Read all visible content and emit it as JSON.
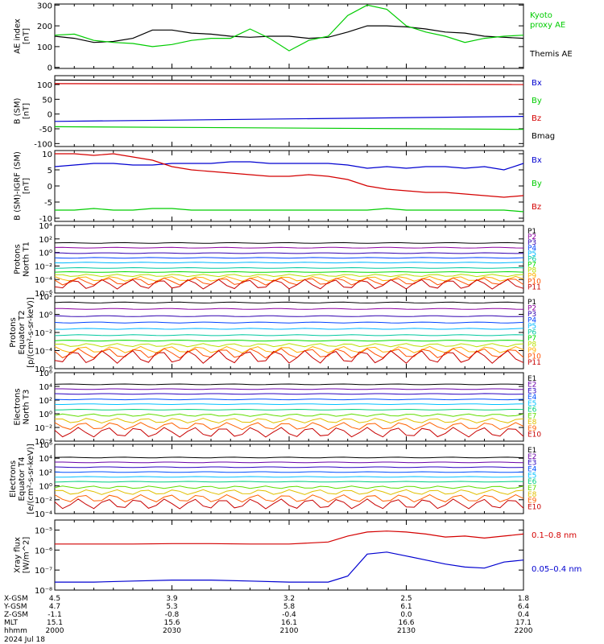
{
  "colors": {
    "black": "#000000",
    "red": "#d40000",
    "green": "#00cc00",
    "blue": "#0000d0"
  },
  "chart_data": [
    {
      "type": "line",
      "panel": 1,
      "ylabel": "AE index\n[nT]",
      "yticks": [
        "0",
        "100",
        "200",
        "300"
      ],
      "ylim": [
        -5,
        305
      ],
      "legend": [
        {
          "name": "Kyoto\nproxy AE",
          "color": "#00cc00"
        },
        {
          "name": "Themis AE",
          "color": "#000000"
        }
      ],
      "x": [
        0,
        5,
        10,
        15,
        20,
        25,
        30,
        35,
        40,
        45,
        50,
        55,
        60,
        65,
        70,
        75,
        80,
        85,
        90,
        95,
        100,
        105,
        110,
        115,
        120
      ],
      "series": [
        {
          "name": "Themis AE",
          "color": "#000000",
          "values": [
            150,
            140,
            120,
            125,
            140,
            180,
            180,
            165,
            160,
            150,
            145,
            150,
            150,
            140,
            145,
            170,
            200,
            200,
            195,
            185,
            170,
            165,
            150,
            145,
            140
          ]
        },
        {
          "name": "Kyoto proxy AE",
          "color": "#00cc00",
          "values": [
            155,
            160,
            130,
            120,
            115,
            100,
            110,
            130,
            140,
            140,
            185,
            140,
            80,
            130,
            150,
            250,
            300,
            280,
            200,
            170,
            150,
            120,
            140,
            150,
            155
          ]
        }
      ]
    },
    {
      "type": "line",
      "panel": 2,
      "ylabel": "B (SM)\n[nT]",
      "yticks": [
        "-100",
        "-50",
        "0",
        "50",
        "100"
      ],
      "ylim": [
        -110,
        130
      ],
      "legend": [
        {
          "name": "Bx",
          "color": "#0000d0"
        },
        {
          "name": "By",
          "color": "#00cc00"
        },
        {
          "name": "Bz",
          "color": "#d40000"
        },
        {
          "name": "Bmag",
          "color": "#000000"
        }
      ],
      "x": [
        0,
        120
      ],
      "series": [
        {
          "name": "Bmag",
          "color": "#000000",
          "values": [
            115,
            112
          ]
        },
        {
          "name": "Bz",
          "color": "#d40000",
          "values": [
            103,
            100
          ]
        },
        {
          "name": "Bx",
          "color": "#0000d0",
          "values": [
            -25,
            -8
          ]
        },
        {
          "name": "By",
          "color": "#00cc00",
          "values": [
            -43,
            -52
          ]
        }
      ]
    },
    {
      "type": "line",
      "panel": 3,
      "ylabel": "B (SM)-IGRF (SM)\n[nT]",
      "yticks": [
        "-10",
        "-5",
        "0",
        "5",
        "10"
      ],
      "ylim": [
        -11,
        11
      ],
      "legend": [
        {
          "name": "Bx",
          "color": "#0000d0"
        },
        {
          "name": "By",
          "color": "#00cc00"
        },
        {
          "name": "Bz",
          "color": "#d40000"
        }
      ],
      "x": [
        0,
        5,
        10,
        15,
        20,
        25,
        30,
        35,
        40,
        45,
        50,
        55,
        60,
        65,
        70,
        75,
        80,
        85,
        90,
        95,
        100,
        105,
        110,
        115,
        120
      ],
      "series": [
        {
          "name": "Bx",
          "color": "#0000d0",
          "values": [
            6,
            6.5,
            7,
            7,
            6.5,
            6.5,
            7,
            7,
            7,
            7.5,
            7.5,
            7,
            7,
            7,
            7,
            6.5,
            5.5,
            6,
            5.5,
            6,
            6,
            5.5,
            6,
            5,
            7
          ]
        },
        {
          "name": "By",
          "color": "#00cc00",
          "values": [
            -7.5,
            -7.5,
            -7,
            -7.5,
            -7.5,
            -7,
            -7,
            -7.5,
            -7.5,
            -7.5,
            -7.5,
            -7.5,
            -7.5,
            -7.5,
            -7.5,
            -7.5,
            -7.5,
            -7,
            -7.5,
            -7.5,
            -7.5,
            -7.5,
            -7.5,
            -7.5,
            -8
          ]
        },
        {
          "name": "Bz",
          "color": "#d40000",
          "values": [
            10,
            10,
            9.5,
            10,
            9,
            8,
            6,
            5,
            4.5,
            4,
            3.5,
            3,
            3,
            3.5,
            3,
            2,
            0,
            -1,
            -1.5,
            -2,
            -2,
            -2.5,
            -3,
            -3.5,
            -3
          ]
        }
      ]
    },
    {
      "type": "line",
      "panel": 4,
      "ylabel": "Protons\nNorth T1",
      "yticks": [
        "10⁻⁶",
        "10⁻⁴",
        "10⁻²",
        "10⁰",
        "10²",
        "10⁴"
      ],
      "ylim": [
        -6,
        4
      ],
      "channels": [
        "P1",
        "P2",
        "P3",
        "P4",
        "P5",
        "P6",
        "P7",
        "P8",
        "P9",
        "P10",
        "P11"
      ],
      "levels": [
        1.4,
        0.7,
        -0.1,
        -0.8,
        -1.5,
        -2.3,
        -2.9,
        -3.4,
        -3.9,
        -4.3,
        -4.7
      ]
    },
    {
      "type": "line",
      "panel": 5,
      "ylabel": "Protons\nEquator T2\n[p/(cm²-s-sr-keV)]",
      "yticks": [
        "10⁻⁶",
        "10⁻⁴",
        "10⁻²",
        "10⁰",
        "10²"
      ],
      "ylim": [
        -6,
        2
      ],
      "channels": [
        "P1",
        "P2",
        "P3",
        "P4",
        "P5",
        "P6",
        "P7",
        "P8",
        "P9",
        "P10",
        "P11"
      ],
      "levels": [
        1.3,
        0.6,
        -0.2,
        -0.9,
        -1.6,
        -2.3,
        -2.9,
        -3.4,
        -3.9,
        -4.3,
        -4.7
      ]
    },
    {
      "type": "line",
      "panel": 6,
      "ylabel": "Electrons\nNorth T3",
      "yticks": [
        "10⁻⁴",
        "10⁻²",
        "10⁰",
        "10²",
        "10⁴",
        "10⁶"
      ],
      "ylim": [
        -4,
        6
      ],
      "channels": [
        "E1",
        "E2",
        "E3",
        "E4",
        "E5",
        "E6",
        "E7",
        "E8",
        "E9",
        "E10"
      ],
      "levels": [
        4.3,
        3.6,
        2.9,
        2.1,
        1.4,
        0.6,
        -0.2,
        -1,
        -1.8,
        -2.7
      ]
    },
    {
      "type": "line",
      "panel": 7,
      "ylabel": "Electrons\nEquator T4\n[e/(cm²-s-sr-keV)]",
      "yticks": [
        "10⁻⁴",
        "10⁻²",
        "10⁰",
        "10²",
        "10⁴",
        "10⁶"
      ],
      "ylim": [
        -4,
        6
      ],
      "channels": [
        "E1",
        "E2",
        "E3",
        "E4",
        "E5",
        "E6",
        "E7",
        "E8",
        "E9",
        "E10"
      ],
      "levels": [
        4.1,
        3.4,
        2.7,
        2,
        1.3,
        0.6,
        -0.2,
        -0.9,
        -1.8,
        -2.6
      ]
    },
    {
      "type": "line",
      "panel": 8,
      "ylabel": "Xray flux\n[W/m^2]",
      "yticks": [
        "10⁻⁸",
        "10⁻⁷",
        "10⁻⁶",
        "10⁻⁵"
      ],
      "ylim": [
        -8,
        -4.5
      ],
      "legend": [
        {
          "name": "0.1–0.8 nm",
          "color": "#d40000"
        },
        {
          "name": "0.05–0.4 nm",
          "color": "#0000d0"
        }
      ],
      "x": [
        0,
        10,
        20,
        30,
        40,
        50,
        60,
        70,
        75,
        80,
        85,
        90,
        95,
        100,
        105,
        110,
        115,
        120
      ],
      "series": [
        {
          "name": "0.1–0.8 nm",
          "color": "#d40000",
          "values": [
            -5.7,
            -5.7,
            -5.7,
            -5.68,
            -5.68,
            -5.7,
            -5.7,
            -5.6,
            -5.3,
            -5.1,
            -5.05,
            -5.1,
            -5.2,
            -5.35,
            -5.3,
            -5.4,
            -5.3,
            -5.2
          ]
        },
        {
          "name": "0.05–0.4 nm",
          "color": "#0000d0",
          "values": [
            -7.6,
            -7.6,
            -7.55,
            -7.5,
            -7.5,
            -7.55,
            -7.6,
            -7.6,
            -7.3,
            -6.2,
            -6.1,
            -6.3,
            -6.5,
            -6.7,
            -6.85,
            -6.9,
            -6.6,
            -6.5
          ]
        }
      ]
    }
  ],
  "xaxis": {
    "rows": [
      {
        "label": "X-GSM",
        "values": [
          "4.5",
          "3.9",
          "3.2",
          "2.5",
          "1.8"
        ]
      },
      {
        "label": "Y-GSM",
        "values": [
          "4.7",
          "5.3",
          "5.8",
          "6.1",
          "6.4"
        ]
      },
      {
        "label": "Z-GSM",
        "values": [
          "-1.1",
          "-0.8",
          "-0.4",
          "0.0",
          "0.4"
        ]
      },
      {
        "label": "MLT",
        "values": [
          "15.1",
          "15.6",
          "16.1",
          "16.6",
          "17.1"
        ]
      },
      {
        "label": "hhmm",
        "values": [
          "2000",
          "2030",
          "2100",
          "2130",
          "2200"
        ]
      }
    ],
    "date": "2024 Jul 18"
  }
}
